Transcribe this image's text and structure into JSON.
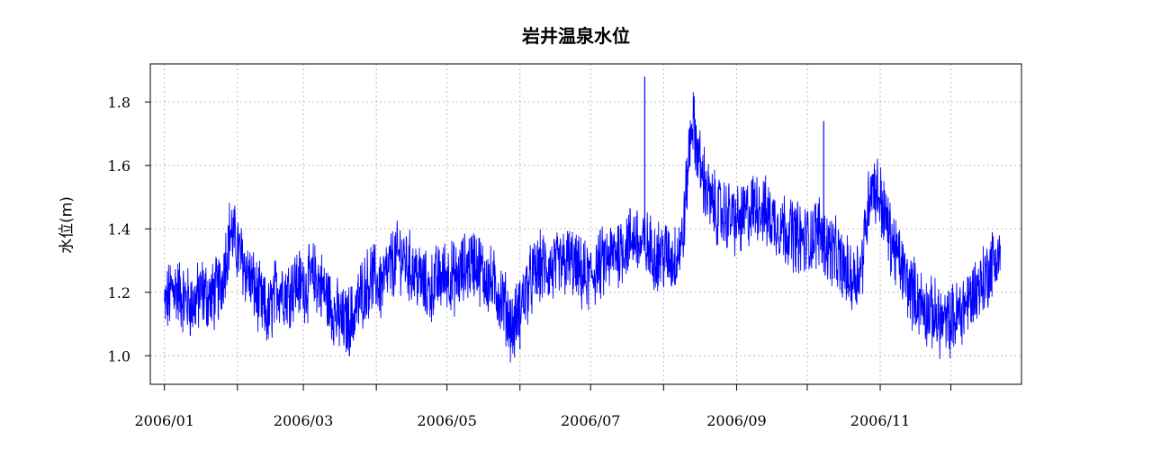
{
  "chart_data": {
    "type": "line",
    "title": "岩井温泉水位",
    "xlabel": "",
    "ylabel": "水位(m)",
    "color": "#0000ff",
    "grid": true,
    "xlim": [
      "2005-12-26",
      "2006-12-31"
    ],
    "ylim": [
      0.91,
      1.92
    ],
    "yticks": [
      1.0,
      1.2,
      1.4,
      1.6,
      1.8
    ],
    "ytick_labels": [
      "1.0",
      "1.2",
      "1.4",
      "1.6",
      "1.8"
    ],
    "xticks": [
      "2006-01-01",
      "2006-02-01",
      "2006-03-01",
      "2006-04-01",
      "2006-05-01",
      "2006-06-01",
      "2006-07-01",
      "2006-08-01",
      "2006-09-01",
      "2006-10-01",
      "2006-11-01",
      "2006-12-01"
    ],
    "xtick_labels": [
      "2006/01",
      "",
      "2006/03",
      "",
      "2006/05",
      "",
      "2006/07",
      "",
      "2006/09",
      "",
      "2006/11",
      ""
    ],
    "series": [
      {
        "x": [
          "2006-01-01",
          "2006-01-05",
          "2006-01-09",
          "2006-01-13",
          "2006-01-17",
          "2006-01-21",
          "2006-01-25",
          "2006-01-29",
          "2006-02-02",
          "2006-02-06",
          "2006-02-10",
          "2006-02-14",
          "2006-02-18",
          "2006-02-22",
          "2006-02-26",
          "2006-03-02",
          "2006-03-06",
          "2006-03-10",
          "2006-03-14",
          "2006-03-18",
          "2006-03-22",
          "2006-03-26",
          "2006-03-30",
          "2006-04-03",
          "2006-04-07",
          "2006-04-11",
          "2006-04-15",
          "2006-04-19",
          "2006-04-23",
          "2006-04-27",
          "2006-05-01",
          "2006-05-05",
          "2006-05-09",
          "2006-05-13",
          "2006-05-17",
          "2006-05-21",
          "2006-05-25",
          "2006-05-29",
          "2006-06-02",
          "2006-06-06",
          "2006-06-10",
          "2006-06-14",
          "2006-06-18",
          "2006-06-22",
          "2006-06-26",
          "2006-06-30",
          "2006-07-04",
          "2006-07-08",
          "2006-07-12",
          "2006-07-16",
          "2006-07-20",
          "2006-07-22",
          "2006-07-24",
          "2006-07-28",
          "2006-08-01",
          "2006-08-05",
          "2006-08-09",
          "2006-08-13",
          "2006-08-17",
          "2006-08-21",
          "2006-08-25",
          "2006-08-29",
          "2006-09-02",
          "2006-09-06",
          "2006-09-10",
          "2006-09-14",
          "2006-09-18",
          "2006-09-22",
          "2006-09-26",
          "2006-09-30",
          "2006-10-04",
          "2006-10-06",
          "2006-10-08",
          "2006-10-12",
          "2006-10-16",
          "2006-10-20",
          "2006-10-24",
          "2006-10-28",
          "2006-11-01",
          "2006-11-05",
          "2006-11-09",
          "2006-11-13",
          "2006-11-17",
          "2006-11-21",
          "2006-11-25",
          "2006-11-29",
          "2006-12-03",
          "2006-12-07",
          "2006-12-11",
          "2006-12-15",
          "2006-12-19",
          "2006-12-22"
        ],
        "values": [
          1.15,
          1.22,
          1.18,
          1.16,
          1.2,
          1.18,
          1.22,
          1.4,
          1.32,
          1.25,
          1.18,
          1.12,
          1.22,
          1.2,
          1.23,
          1.22,
          1.25,
          1.2,
          1.14,
          1.1,
          1.12,
          1.2,
          1.25,
          1.22,
          1.28,
          1.32,
          1.28,
          1.25,
          1.2,
          1.24,
          1.26,
          1.24,
          1.28,
          1.3,
          1.25,
          1.22,
          1.17,
          1.08,
          1.18,
          1.24,
          1.28,
          1.27,
          1.28,
          1.3,
          1.26,
          1.24,
          1.28,
          1.3,
          1.33,
          1.35,
          1.38,
          1.34,
          1.35,
          1.32,
          1.32,
          1.3,
          1.36,
          1.75,
          1.58,
          1.48,
          1.45,
          1.44,
          1.42,
          1.45,
          1.48,
          1.44,
          1.42,
          1.4,
          1.38,
          1.36,
          1.38,
          1.4,
          1.36,
          1.33,
          1.28,
          1.24,
          1.28,
          1.55,
          1.5,
          1.38,
          1.3,
          1.22,
          1.18,
          1.14,
          1.12,
          1.1,
          1.12,
          1.16,
          1.2,
          1.24,
          1.3,
          1.32
        ]
      }
    ],
    "annotations": [
      {
        "x": "2006-07-24",
        "y": 1.88,
        "label": ""
      },
      {
        "x": "2006-10-08",
        "y": 1.74,
        "label": ""
      },
      {
        "x": "2006-06-01",
        "y": 1.02,
        "label": ""
      }
    ]
  }
}
